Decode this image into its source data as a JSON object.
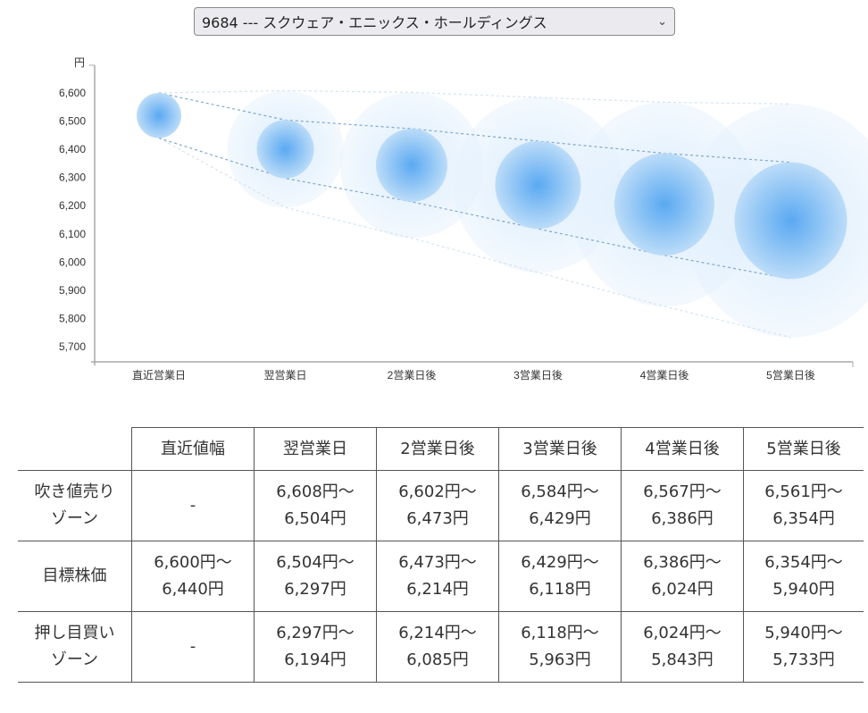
{
  "selector": {
    "value": "9684 --- スクウェア・エニックス・ホールディングス",
    "icon": "chevron-down-icon"
  },
  "chart_data": {
    "type": "bubble-range",
    "ylabel": "円",
    "ylim": [
      5646,
      6700
    ],
    "yticks": [
      "5,700",
      "5,800",
      "5,900",
      "6,000",
      "6,100",
      "6,200",
      "6,300",
      "6,400",
      "6,500",
      "6,600"
    ],
    "ytick_values": [
      5700,
      5800,
      5900,
      6000,
      6100,
      6200,
      6300,
      6400,
      6500,
      6600
    ],
    "categories": [
      "直近営業日",
      "翌営業日",
      "2営業日後",
      "3営業日後",
      "4営業日後",
      "5営業日後"
    ],
    "target_high": [
      6600,
      6504,
      6473,
      6429,
      6386,
      6354
    ],
    "target_low": [
      6440,
      6297,
      6214,
      6118,
      6024,
      5940
    ],
    "sell_high": [
      null,
      6608,
      6602,
      6584,
      6567,
      6561
    ],
    "buy_low": [
      null,
      6194,
      6085,
      5963,
      5843,
      5733
    ],
    "colors": {
      "inner": "#4a9ff0",
      "outer": "#cfe6fb",
      "line": "#7fa8cc"
    }
  },
  "table": {
    "headers": [
      "",
      "直近値幅",
      "翌営業日",
      "2営業日後",
      "3営業日後",
      "4営業日後",
      "5営業日後"
    ],
    "rows": [
      {
        "label": [
          "吹き値売り",
          "ゾーン"
        ],
        "cells": [
          [
            "-",
            ""
          ],
          [
            "6,608円〜",
            "6,504円"
          ],
          [
            "6,602円〜",
            "6,473円"
          ],
          [
            "6,584円〜",
            "6,429円"
          ],
          [
            "6,567円〜",
            "6,386円"
          ],
          [
            "6,561円〜",
            "6,354円"
          ]
        ]
      },
      {
        "label": [
          "目標株価",
          ""
        ],
        "cells": [
          [
            "6,600円〜",
            "6,440円"
          ],
          [
            "6,504円〜",
            "6,297円"
          ],
          [
            "6,473円〜",
            "6,214円"
          ],
          [
            "6,429円〜",
            "6,118円"
          ],
          [
            "6,386円〜",
            "6,024円"
          ],
          [
            "6,354円〜",
            "5,940円"
          ]
        ]
      },
      {
        "label": [
          "押し目買い",
          "ゾーン"
        ],
        "cells": [
          [
            "-",
            ""
          ],
          [
            "6,297円〜",
            "6,194円"
          ],
          [
            "6,214円〜",
            "6,085円"
          ],
          [
            "6,118円〜",
            "5,963円"
          ],
          [
            "6,024円〜",
            "5,843円"
          ],
          [
            "5,940円〜",
            "5,733円"
          ]
        ]
      }
    ]
  }
}
